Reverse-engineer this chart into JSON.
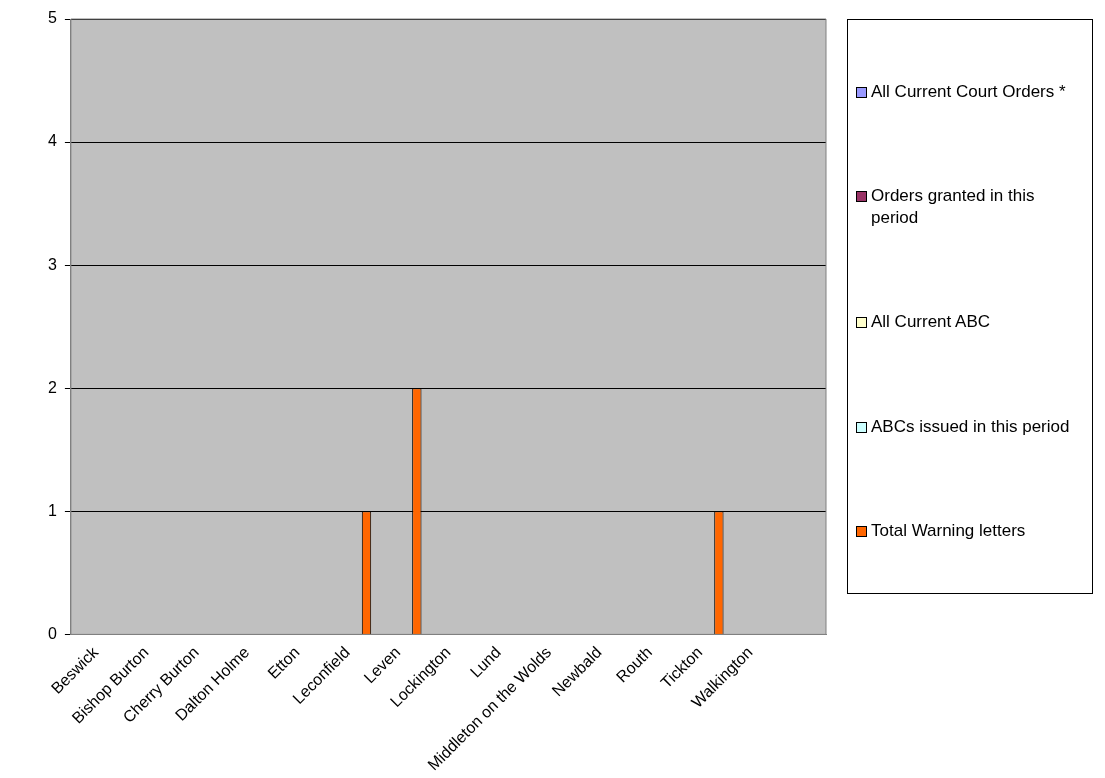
{
  "chart_data": {
    "type": "bar",
    "categories": [
      "Beswick",
      "Bishop Burton",
      "Cherry Burton",
      "Dalton Holme",
      "Etton",
      "Leconfield",
      "Leven",
      "Lockington",
      "Lund",
      "Middleton on the Wolds",
      "Newbald",
      "Routh",
      "Tickton",
      "Walkington",
      null
    ],
    "series": [
      {
        "name": "All Current Court Orders *",
        "color": "#9999ff",
        "values": [
          0,
          0,
          0,
          0,
          0,
          0,
          0,
          0,
          0,
          0,
          0,
          0,
          0,
          0,
          0
        ]
      },
      {
        "name": "Orders granted in this period",
        "color": "#993366",
        "values": [
          0,
          0,
          0,
          0,
          0,
          0,
          0,
          0,
          0,
          0,
          0,
          0,
          0,
          0,
          0
        ]
      },
      {
        "name": "All Current ABC",
        "color": "#ffffcc",
        "values": [
          0,
          0,
          0,
          0,
          0,
          0,
          0,
          0,
          0,
          0,
          0,
          0,
          0,
          0,
          0
        ]
      },
      {
        "name": "ABCs issued in this period",
        "color": "#ccffff",
        "values": [
          0,
          0,
          0,
          0,
          0,
          0,
          0,
          0,
          0,
          0,
          0,
          0,
          0,
          0,
          0
        ]
      },
      {
        "name": "Total Warning letters",
        "color": "#ff6600",
        "values": [
          0,
          0,
          0,
          0,
          0,
          1,
          2,
          0,
          0,
          0,
          0,
          0,
          1,
          0,
          0
        ]
      }
    ],
    "ylim": [
      0,
      5
    ],
    "yticks": [
      0,
      1,
      2,
      3,
      4,
      5
    ],
    "grid": "y",
    "legend": "right"
  }
}
